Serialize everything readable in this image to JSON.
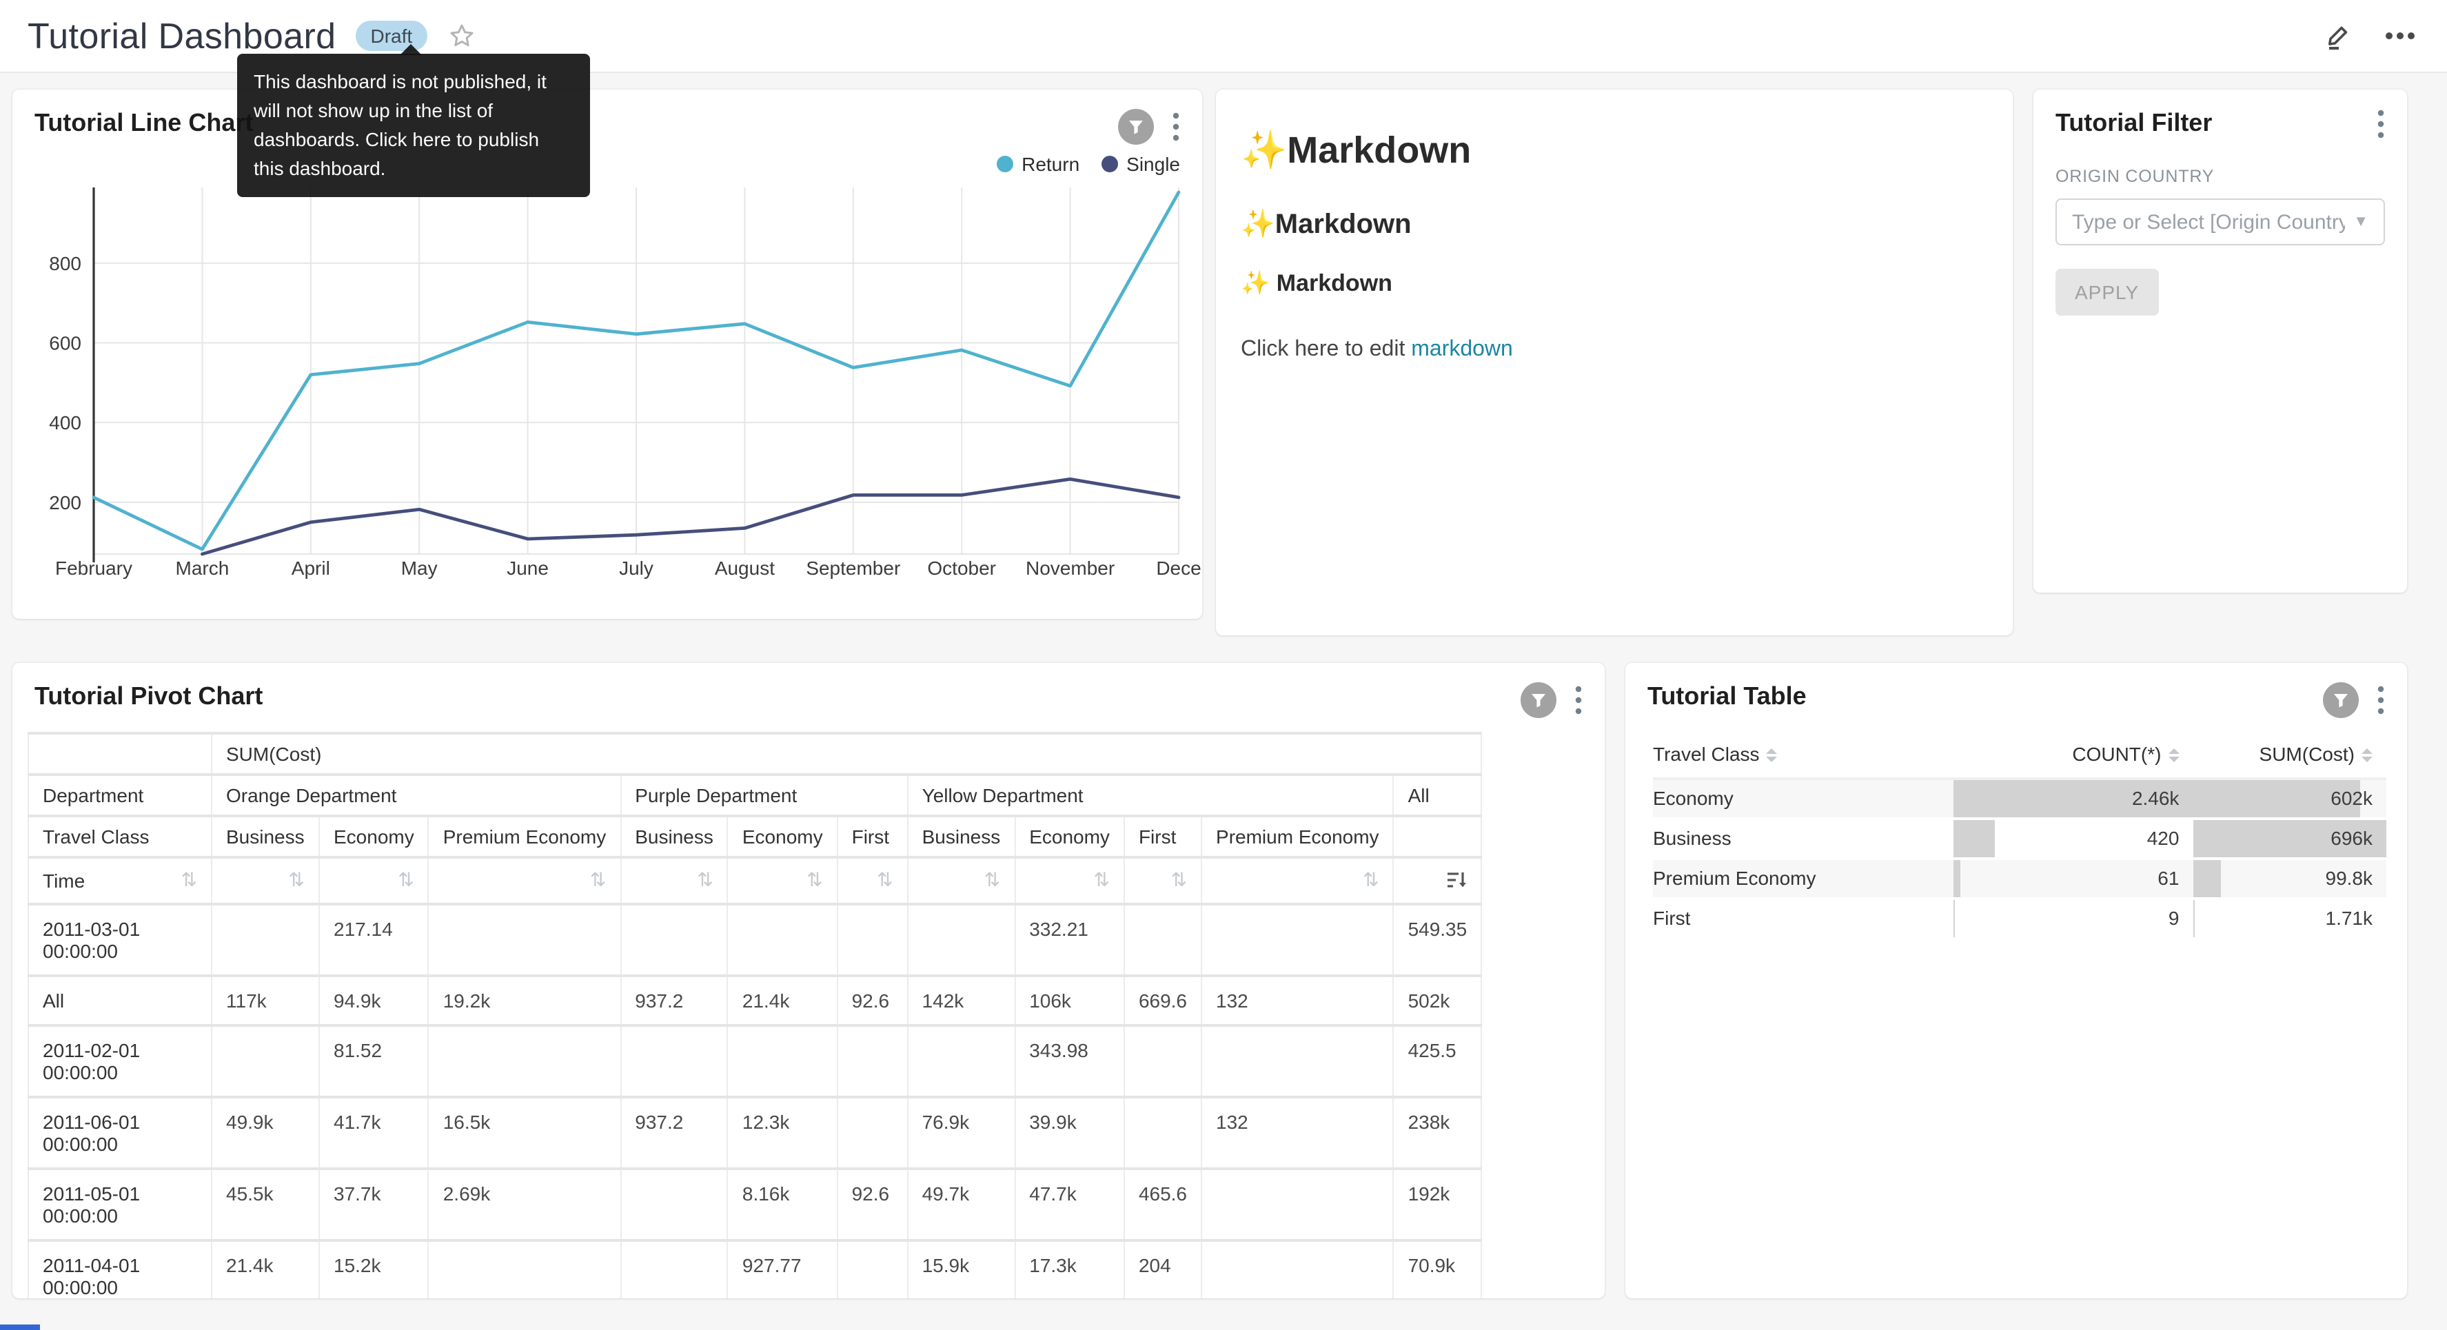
{
  "header": {
    "title": "Tutorial Dashboard",
    "status_badge": "Draft",
    "tooltip": "This dashboard is not published, it will not show up in the list of dashboards. Click here to publish this dashboard."
  },
  "colors": {
    "draft_badge_bg": "#B7D9EE",
    "link": "#1B85A5",
    "series_return": "#4FB2CE",
    "series_single": "#454E7C",
    "bar_fill": "#D2D2D2",
    "bottom_strip": "#3466D6"
  },
  "panels": {
    "line_chart": {
      "title": "Tutorial Line Chart"
    },
    "markdown": {
      "h1": "✨Markdown",
      "h2": "✨Markdown",
      "h3": "✨ Markdown",
      "edit_text": "Click here to edit ",
      "edit_link": "markdown"
    },
    "filter": {
      "title": "Tutorial Filter",
      "field_label": "ORIGIN COUNTRY",
      "select_placeholder": "Type or Select [Origin Country]",
      "apply_label": "APPLY"
    },
    "pivot": {
      "title": "Tutorial Pivot Chart"
    },
    "table": {
      "title": "Tutorial Table"
    }
  },
  "chart_data": [
    {
      "id": "tutorial-line-chart",
      "type": "line",
      "title": "Tutorial Line Chart",
      "x": [
        "February",
        "March",
        "April",
        "May",
        "June",
        "July",
        "August",
        "September",
        "October",
        "November",
        "Dece"
      ],
      "series": [
        {
          "name": "Return",
          "color": "#4FB2CE",
          "values": [
            212,
            82,
            520,
            548,
            652,
            622,
            648,
            538,
            582,
            492,
            978
          ]
        },
        {
          "name": "Single",
          "color": "#454E7C",
          "values": [
            null,
            70,
            150,
            182,
            108,
            118,
            135,
            218,
            218,
            258,
            212
          ]
        }
      ],
      "ylim": [
        0,
        1000
      ],
      "yticks": [
        200,
        400,
        600,
        800
      ],
      "grid": true,
      "legend_position": "top-right"
    },
    {
      "id": "tutorial-pivot-chart",
      "type": "table",
      "title": "Tutorial Pivot Chart",
      "metric": "SUM(Cost)",
      "row1_label": "Department",
      "row2_label": "Travel Class",
      "row_header": "Time",
      "column_groups": [
        {
          "department": "Orange Department",
          "classes": [
            "Business",
            "Economy",
            "Premium Economy"
          ]
        },
        {
          "department": "Purple Department",
          "classes": [
            "Business",
            "Economy",
            "First"
          ]
        },
        {
          "department": "Yellow Department",
          "classes": [
            "Business",
            "Economy",
            "First",
            "Premium Economy"
          ]
        },
        {
          "department": "All",
          "classes": [
            ""
          ]
        }
      ],
      "rows": [
        {
          "time": "2011-03-01 00:00:00",
          "values": [
            "",
            "217.14",
            "",
            "",
            "",
            "",
            "",
            "332.21",
            "",
            "",
            "549.35"
          ]
        },
        {
          "time": "All",
          "values": [
            "117k",
            "94.9k",
            "19.2k",
            "937.2",
            "21.4k",
            "92.6",
            "142k",
            "106k",
            "669.6",
            "132",
            "502k"
          ]
        },
        {
          "time": "2011-02-01 00:00:00",
          "values": [
            "",
            "81.52",
            "",
            "",
            "",
            "",
            "",
            "343.98",
            "",
            "",
            "425.5"
          ]
        },
        {
          "time": "2011-06-01 00:00:00",
          "values": [
            "49.9k",
            "41.7k",
            "16.5k",
            "937.2",
            "12.3k",
            "",
            "76.9k",
            "39.9k",
            "",
            "132",
            "238k"
          ]
        },
        {
          "time": "2011-05-01 00:00:00",
          "values": [
            "45.5k",
            "37.7k",
            "2.69k",
            "",
            "8.16k",
            "92.6",
            "49.7k",
            "47.7k",
            "465.6",
            "",
            "192k"
          ]
        },
        {
          "time": "2011-04-01 00:00:00",
          "values": [
            "21.4k",
            "15.2k",
            "",
            "",
            "927.77",
            "",
            "15.9k",
            "17.3k",
            "204",
            "",
            "70.9k"
          ]
        }
      ],
      "sorted_column": "All",
      "sort_direction": "desc"
    },
    {
      "id": "tutorial-table",
      "type": "table",
      "title": "Tutorial Table",
      "columns": [
        "Travel Class",
        "COUNT(*)",
        "SUM(Cost)"
      ],
      "rows": [
        {
          "travel_class": "Economy",
          "count_display": "2.46k",
          "count": 2460,
          "sum_display": "602k",
          "sum": 602000
        },
        {
          "travel_class": "Business",
          "count_display": "420",
          "count": 420,
          "sum_display": "696k",
          "sum": 696000
        },
        {
          "travel_class": "Premium Economy",
          "count_display": "61",
          "count": 61,
          "sum_display": "99.8k",
          "sum": 99800
        },
        {
          "travel_class": "First",
          "count_display": "9",
          "count": 9,
          "sum_display": "1.71k",
          "sum": 1710
        }
      ]
    }
  ]
}
